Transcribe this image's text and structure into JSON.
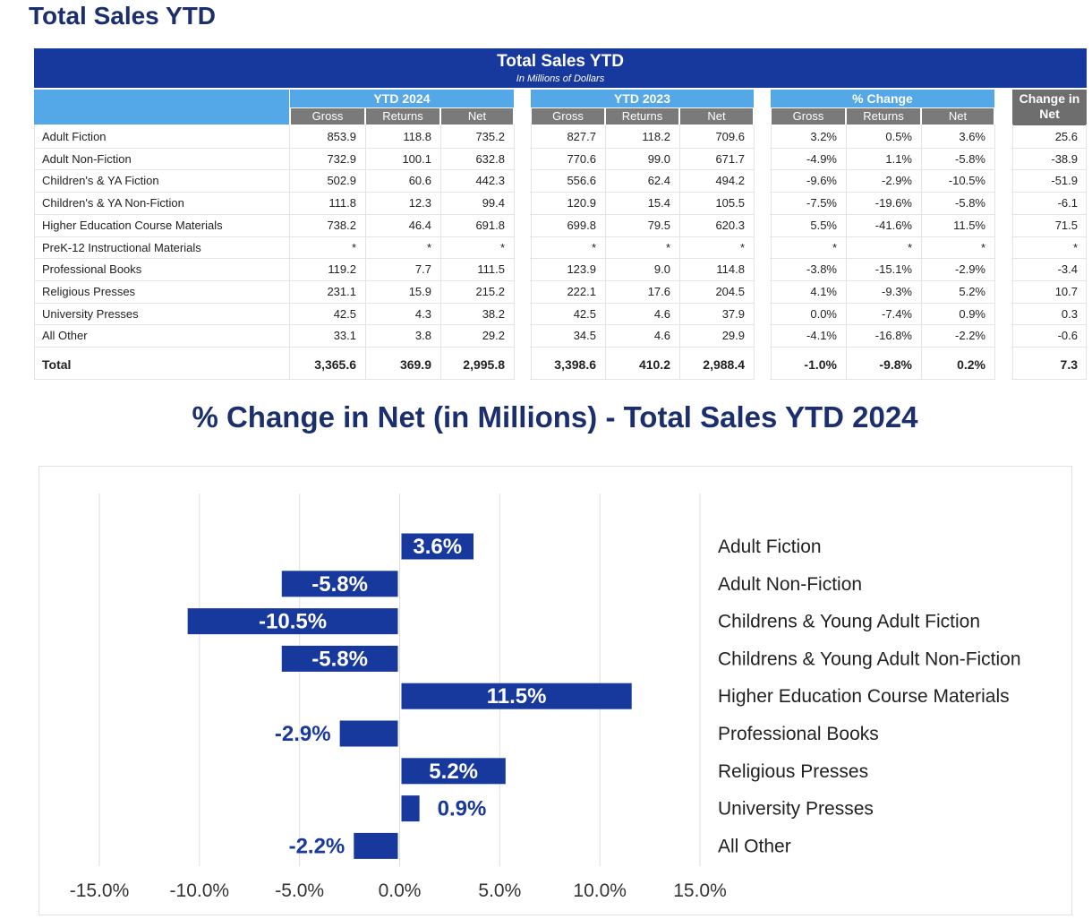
{
  "page": {
    "title": "Total Sales YTD"
  },
  "table": {
    "title": "Total Sales YTD",
    "subtitle": "In Millions of Dollars",
    "groups": [
      {
        "label": "YTD 2024",
        "columns": [
          "Gross",
          "Returns",
          "Net"
        ]
      },
      {
        "label": "YTD 2023",
        "columns": [
          "Gross",
          "Returns",
          "Net"
        ]
      },
      {
        "label": "% Change",
        "columns": [
          "Gross",
          "Returns",
          "Net"
        ]
      },
      {
        "label": "Change in Net",
        "columns": []
      }
    ],
    "rows": [
      {
        "label": "Adult Fiction",
        "values": [
          "853.9",
          "118.8",
          "735.2",
          "827.7",
          "118.2",
          "709.6",
          "3.2%",
          "0.5%",
          "3.6%",
          "25.6"
        ]
      },
      {
        "label": "Adult Non-Fiction",
        "values": [
          "732.9",
          "100.1",
          "632.8",
          "770.6",
          "99.0",
          "671.7",
          "-4.9%",
          "1.1%",
          "-5.8%",
          "-38.9"
        ]
      },
      {
        "label": "Children's & YA Fiction",
        "values": [
          "502.9",
          "60.6",
          "442.3",
          "556.6",
          "62.4",
          "494.2",
          "-9.6%",
          "-2.9%",
          "-10.5%",
          "-51.9"
        ]
      },
      {
        "label": "Children's & YA Non-Fiction",
        "values": [
          "111.8",
          "12.3",
          "99.4",
          "120.9",
          "15.4",
          "105.5",
          "-7.5%",
          "-19.6%",
          "-5.8%",
          "-6.1"
        ]
      },
      {
        "label": "Higher Education Course Materials",
        "values": [
          "738.2",
          "46.4",
          "691.8",
          "699.8",
          "79.5",
          "620.3",
          "5.5%",
          "-41.6%",
          "11.5%",
          "71.5"
        ]
      },
      {
        "label": "PreK-12 Instructional Materials",
        "values": [
          "*",
          "*",
          "*",
          "*",
          "*",
          "*",
          "*",
          "*",
          "*",
          "*"
        ]
      },
      {
        "label": "Professional Books",
        "values": [
          "119.2",
          "7.7",
          "111.5",
          "123.9",
          "9.0",
          "114.8",
          "-3.8%",
          "-15.1%",
          "-2.9%",
          "-3.4"
        ]
      },
      {
        "label": "Religious Presses",
        "values": [
          "231.1",
          "15.9",
          "215.2",
          "222.1",
          "17.6",
          "204.5",
          "4.1%",
          "-9.3%",
          "5.2%",
          "10.7"
        ]
      },
      {
        "label": "University Presses",
        "values": [
          "42.5",
          "4.3",
          "38.2",
          "42.5",
          "4.6",
          "37.9",
          "0.0%",
          "-7.4%",
          "0.9%",
          "0.3"
        ]
      },
      {
        "label": "All Other",
        "values": [
          "33.1",
          "3.8",
          "29.2",
          "34.5",
          "4.6",
          "29.9",
          "-4.1%",
          "-16.8%",
          "-2.2%",
          "-0.6"
        ]
      }
    ],
    "total": {
      "label": "Total",
      "values": [
        "3,365.6",
        "369.9",
        "2,995.8",
        "3,398.6",
        "410.2",
        "2,988.4",
        "-1.0%",
        "-9.8%",
        "0.2%",
        "7.3"
      ]
    }
  },
  "chart_data": {
    "type": "bar",
    "orientation": "horizontal",
    "title": "% Change in Net (in Millions) - Total Sales YTD 2024",
    "categories": [
      "Adult Fiction",
      "Adult Non-Fiction",
      "Childrens & Young Adult Fiction",
      "Childrens & Young Adult Non-Fiction",
      "Higher Education Course Materials",
      "Professional Books",
      "Religious Presses",
      "University Presses",
      "All Other"
    ],
    "values": [
      3.6,
      -5.8,
      -10.5,
      -5.8,
      11.5,
      -2.9,
      5.2,
      0.9,
      -2.2
    ],
    "data_labels": [
      "3.6%",
      "-5.8%",
      "-10.5%",
      "-5.8%",
      "11.5%",
      "-2.9%",
      "5.2%",
      "0.9%",
      "-2.2%"
    ],
    "xlim": [
      -15,
      15
    ],
    "xticks": [
      -15,
      -10,
      -5,
      0,
      5,
      10,
      15
    ],
    "xtick_labels": [
      "-15.0%",
      "-10.0%",
      "-5.0%",
      "0.0%",
      "5.0%",
      "10.0%",
      "15.0%"
    ],
    "grid": true,
    "bar_color": "#17389c",
    "label_color_inside": "#ffffff",
    "label_color_outside": "#17389c"
  }
}
